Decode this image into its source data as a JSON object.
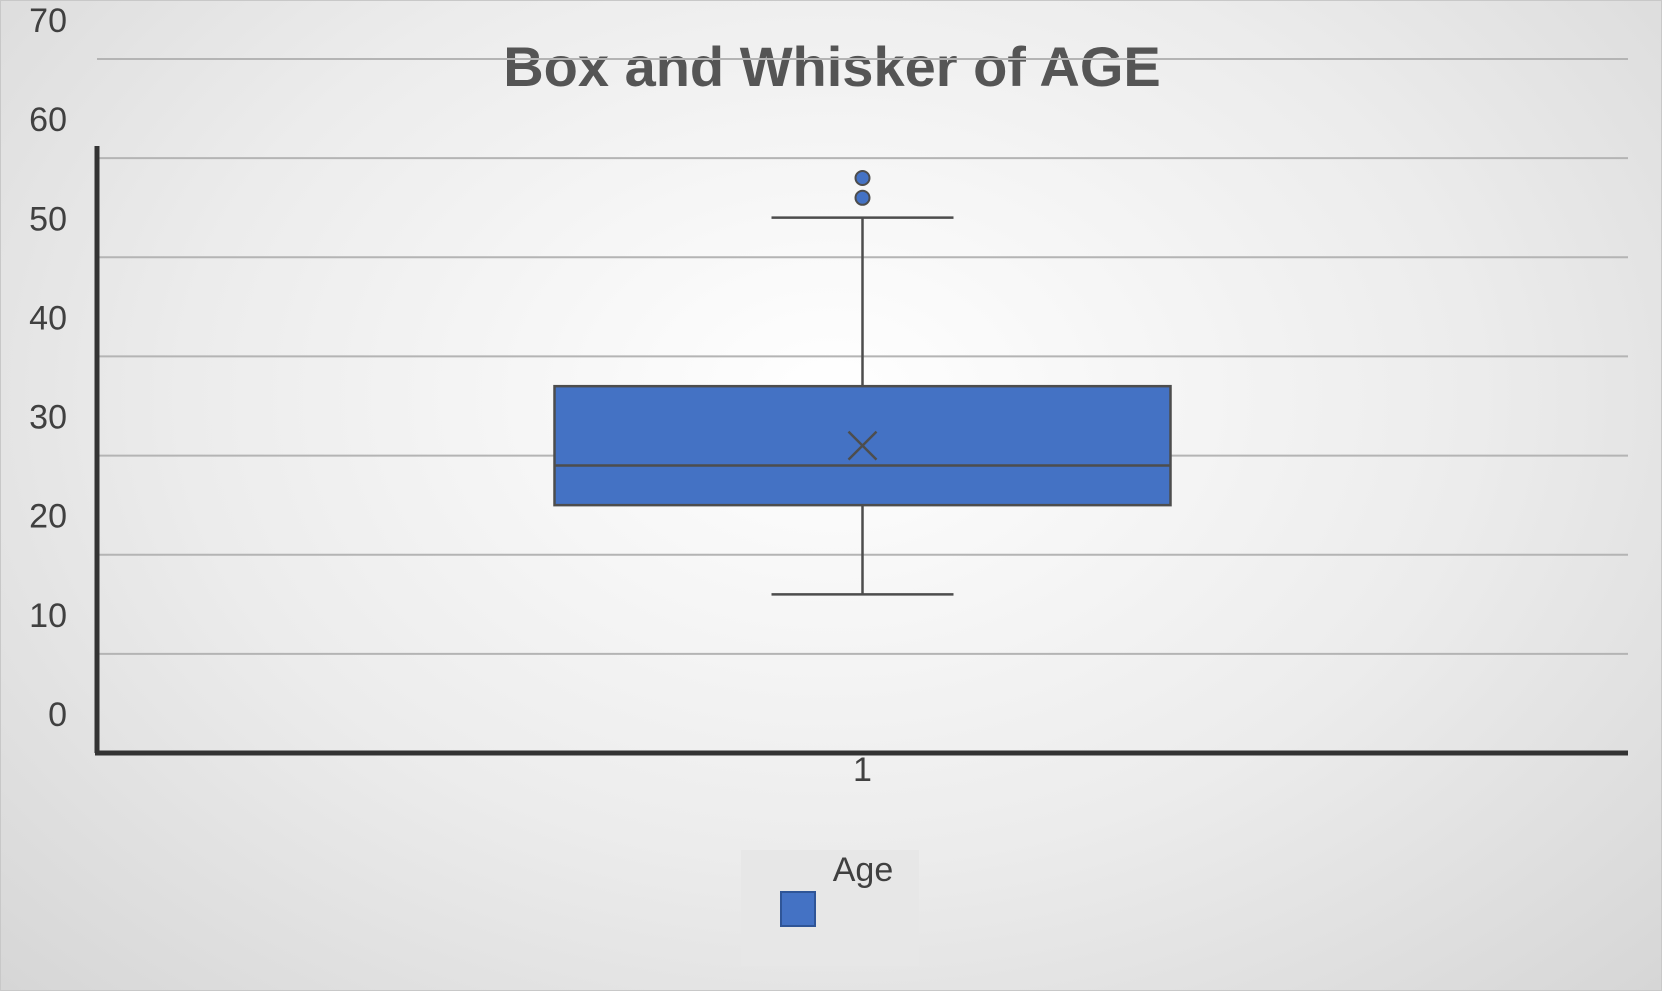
{
  "chart_data": {
    "type": "box",
    "title": "Box and Whisker of AGE",
    "xlabel": "",
    "ylabel": "",
    "ylim": [
      0,
      70
    ],
    "y_ticks": [
      "0",
      "10",
      "20",
      "30",
      "40",
      "50",
      "60",
      "70"
    ],
    "categories": [
      "1"
    ],
    "series": [
      {
        "name": "Age",
        "color": "#4472C4",
        "min": 16,
        "q1": 25,
        "median": 29,
        "q3": 37,
        "max": 54,
        "mean": 31,
        "outliers": [
          56,
          58
        ]
      }
    ],
    "legend": {
      "position": "bottom",
      "entries": [
        "Age"
      ]
    },
    "grid": true
  }
}
